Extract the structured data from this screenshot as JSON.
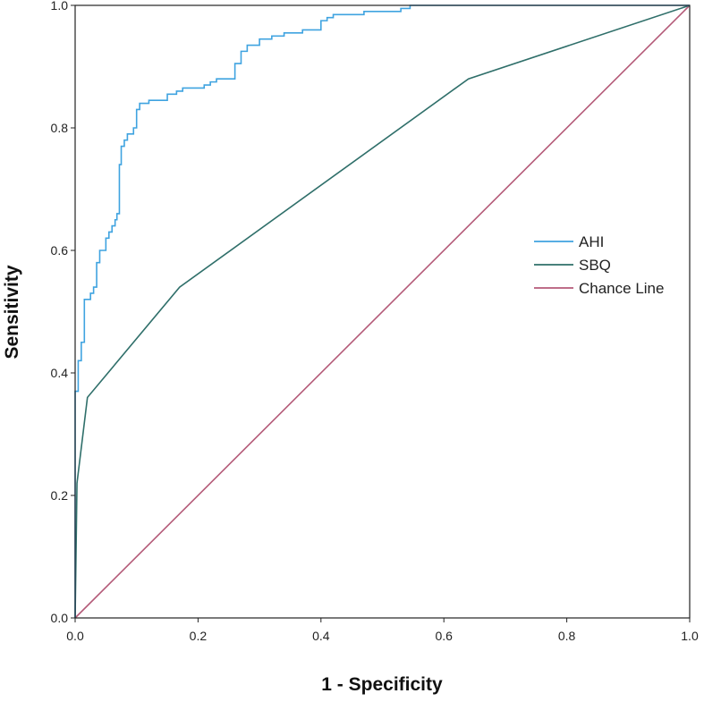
{
  "chart_data": {
    "type": "line",
    "title": "",
    "xlabel": "1 - Specificity",
    "ylabel": "Sensitivity",
    "xlim": [
      0,
      1
    ],
    "ylim": [
      0,
      1
    ],
    "xticks": [
      "0.0",
      "0.2",
      "0.4",
      "0.6",
      "0.8",
      "1.0"
    ],
    "yticks": [
      "0.0",
      "0.2",
      "0.4",
      "0.6",
      "0.8",
      "1.0"
    ],
    "grid": false,
    "legend_position": "right-middle",
    "series": [
      {
        "name": "AHI",
        "color": "#3fa3e0",
        "step": true,
        "points": [
          [
            0.0,
            0.0
          ],
          [
            0.0,
            0.37
          ],
          [
            0.005,
            0.37
          ],
          [
            0.005,
            0.42
          ],
          [
            0.01,
            0.42
          ],
          [
            0.01,
            0.45
          ],
          [
            0.015,
            0.45
          ],
          [
            0.015,
            0.52
          ],
          [
            0.025,
            0.52
          ],
          [
            0.025,
            0.53
          ],
          [
            0.03,
            0.53
          ],
          [
            0.03,
            0.54
          ],
          [
            0.035,
            0.54
          ],
          [
            0.035,
            0.58
          ],
          [
            0.04,
            0.58
          ],
          [
            0.04,
            0.6
          ],
          [
            0.05,
            0.6
          ],
          [
            0.05,
            0.62
          ],
          [
            0.055,
            0.62
          ],
          [
            0.055,
            0.63
          ],
          [
            0.06,
            0.63
          ],
          [
            0.06,
            0.64
          ],
          [
            0.065,
            0.64
          ],
          [
            0.065,
            0.65
          ],
          [
            0.068,
            0.65
          ],
          [
            0.068,
            0.66
          ],
          [
            0.072,
            0.66
          ],
          [
            0.072,
            0.74
          ],
          [
            0.075,
            0.74
          ],
          [
            0.075,
            0.77
          ],
          [
            0.08,
            0.77
          ],
          [
            0.08,
            0.78
          ],
          [
            0.085,
            0.78
          ],
          [
            0.085,
            0.79
          ],
          [
            0.095,
            0.79
          ],
          [
            0.095,
            0.8
          ],
          [
            0.1,
            0.8
          ],
          [
            0.1,
            0.83
          ],
          [
            0.105,
            0.83
          ],
          [
            0.105,
            0.84
          ],
          [
            0.12,
            0.84
          ],
          [
            0.12,
            0.845
          ],
          [
            0.15,
            0.845
          ],
          [
            0.15,
            0.855
          ],
          [
            0.165,
            0.855
          ],
          [
            0.165,
            0.86
          ],
          [
            0.175,
            0.86
          ],
          [
            0.175,
            0.865
          ],
          [
            0.21,
            0.865
          ],
          [
            0.21,
            0.87
          ],
          [
            0.22,
            0.87
          ],
          [
            0.22,
            0.875
          ],
          [
            0.23,
            0.875
          ],
          [
            0.23,
            0.88
          ],
          [
            0.26,
            0.88
          ],
          [
            0.26,
            0.905
          ],
          [
            0.27,
            0.905
          ],
          [
            0.27,
            0.925
          ],
          [
            0.28,
            0.925
          ],
          [
            0.28,
            0.935
          ],
          [
            0.3,
            0.935
          ],
          [
            0.3,
            0.945
          ],
          [
            0.32,
            0.945
          ],
          [
            0.32,
            0.95
          ],
          [
            0.34,
            0.95
          ],
          [
            0.34,
            0.955
          ],
          [
            0.37,
            0.955
          ],
          [
            0.37,
            0.96
          ],
          [
            0.4,
            0.96
          ],
          [
            0.4,
            0.975
          ],
          [
            0.41,
            0.975
          ],
          [
            0.41,
            0.98
          ],
          [
            0.42,
            0.98
          ],
          [
            0.42,
            0.985
          ],
          [
            0.47,
            0.985
          ],
          [
            0.47,
            0.99
          ],
          [
            0.53,
            0.99
          ],
          [
            0.53,
            0.995
          ],
          [
            0.545,
            0.995
          ],
          [
            0.545,
            1.0
          ],
          [
            1.0,
            1.0
          ]
        ]
      },
      {
        "name": "SBQ",
        "color": "#2f6f6a",
        "step": false,
        "points": [
          [
            0.0,
            0.0
          ],
          [
            0.003,
            0.22
          ],
          [
            0.02,
            0.36
          ],
          [
            0.17,
            0.54
          ],
          [
            0.64,
            0.88
          ],
          [
            1.0,
            1.0
          ]
        ]
      },
      {
        "name": "Chance Line",
        "color": "#b45a78",
        "step": false,
        "points": [
          [
            0.0,
            0.0
          ],
          [
            1.0,
            1.0
          ]
        ]
      }
    ]
  }
}
